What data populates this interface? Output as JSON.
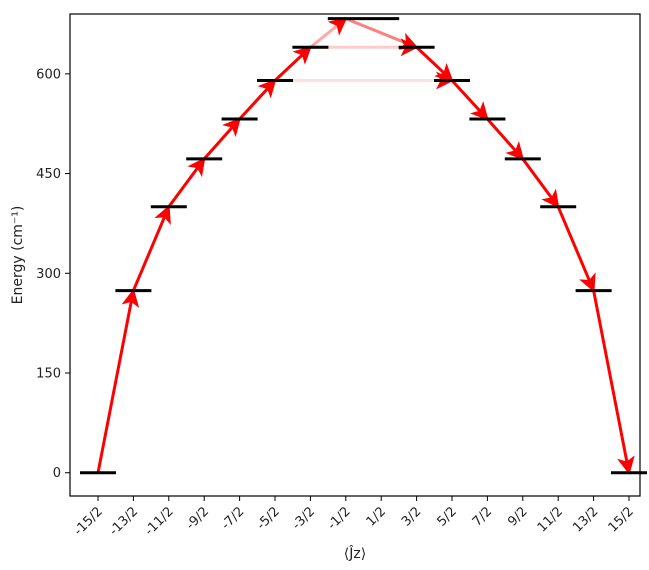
{
  "chart_data": {
    "type": "line",
    "xlabel": "⟨Ĵz⟩",
    "ylabel": "Energy (cm⁻¹)",
    "ylim": [
      -35,
      690
    ],
    "grid": false,
    "legend": "none",
    "x_categories": [
      "-15/2",
      "-13/2",
      "-11/2",
      "-9/2",
      "-7/2",
      "-5/2",
      "-3/2",
      "-1/2",
      "1/2",
      "3/2",
      "5/2",
      "7/2",
      "9/2",
      "11/2",
      "13/2",
      "15/2"
    ],
    "y_ticks": [
      "0",
      "150",
      "300",
      "450",
      "600"
    ],
    "y_tick_values": [
      0,
      150,
      300,
      450,
      600
    ],
    "levels": [
      {
        "state": "-15/2",
        "energy": 0
      },
      {
        "state": "-13/2",
        "energy": 274
      },
      {
        "state": "-11/2",
        "energy": 400
      },
      {
        "state": "-9/2",
        "energy": 472
      },
      {
        "state": "-7/2",
        "energy": 532
      },
      {
        "state": "-5/2",
        "energy": 590
      },
      {
        "state": "-3/2",
        "energy": 640
      },
      {
        "state": "-1/2",
        "energy": 683
      },
      {
        "state": "1/2",
        "energy": 683
      },
      {
        "state": "3/2",
        "energy": 640
      },
      {
        "state": "5/2",
        "energy": 590
      },
      {
        "state": "7/2",
        "energy": 532
      },
      {
        "state": "9/2",
        "energy": 472
      },
      {
        "state": "11/2",
        "energy": 400
      },
      {
        "state": "13/2",
        "energy": 274
      },
      {
        "state": "15/2",
        "energy": 0
      }
    ],
    "transitions": [
      {
        "from": "-15/2",
        "to": "-13/2",
        "strength": 1.0
      },
      {
        "from": "-13/2",
        "to": "-11/2",
        "strength": 1.0
      },
      {
        "from": "-11/2",
        "to": "-9/2",
        "strength": 1.0
      },
      {
        "from": "-9/2",
        "to": "-7/2",
        "strength": 1.0
      },
      {
        "from": "-7/2",
        "to": "-5/2",
        "strength": 1.0
      },
      {
        "from": "-5/2",
        "to": "-3/2",
        "strength": 1.0
      },
      {
        "from": "-3/2",
        "to": "-1/2",
        "strength": 0.35
      },
      {
        "from": "-1/2",
        "to": "3/2",
        "strength": 0.5
      },
      {
        "from": "-3/2",
        "to": "3/2",
        "strength": 0.2
      },
      {
        "from": "-5/2",
        "to": "5/2",
        "strength": 0.12
      },
      {
        "from": "3/2",
        "to": "5/2",
        "strength": 1.0
      },
      {
        "from": "5/2",
        "to": "7/2",
        "strength": 1.0
      },
      {
        "from": "7/2",
        "to": "9/2",
        "strength": 1.0
      },
      {
        "from": "9/2",
        "to": "11/2",
        "strength": 1.0
      },
      {
        "from": "11/2",
        "to": "13/2",
        "strength": 1.0
      },
      {
        "from": "13/2",
        "to": "15/2",
        "strength": 1.0
      }
    ],
    "colors": {
      "arrow": "#ff0000",
      "level": "#000000",
      "axis": "#000000"
    }
  }
}
